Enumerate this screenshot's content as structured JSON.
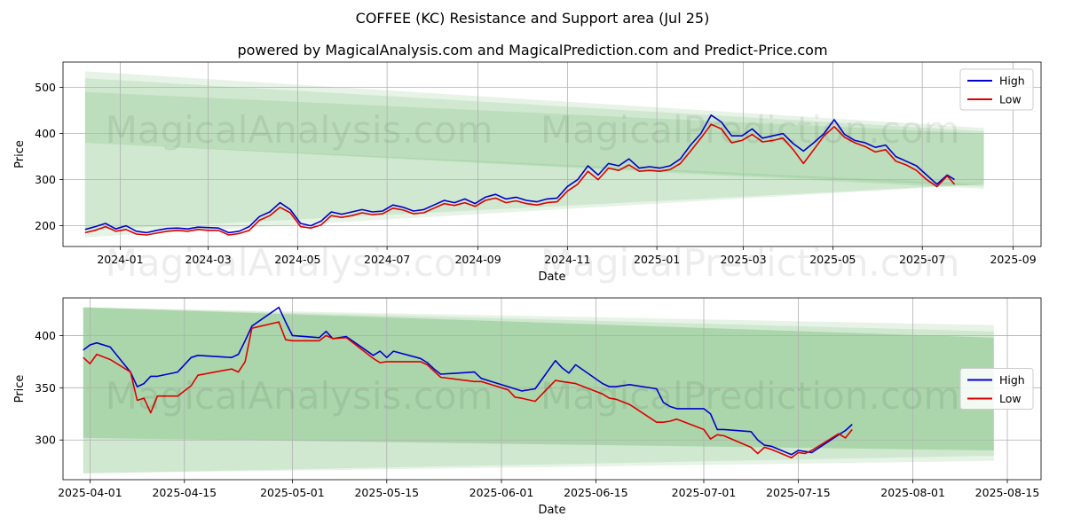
{
  "title": "COFFEE (KC) Resistance and Support area (Jul 25)",
  "subtitle": "powered by MagicalAnalysis.com and MagicalPrediction.com and Predict-Price.com",
  "watermark": "MagicalAnalysis.com    MagicalPrediction.com",
  "colors": {
    "high": "#0000cc",
    "low": "#dd0000",
    "band": "#2e9a2e",
    "grid": "#b0b0b0"
  },
  "chart_data": [
    {
      "type": "line",
      "xlabel": "Date",
      "ylabel": "Price",
      "ylim": [
        155,
        555
      ],
      "xlim": [
        "2023-11-23",
        "2025-09-20"
      ],
      "xticks": [
        "2024-01",
        "2024-03",
        "2024-05",
        "2024-07",
        "2024-09",
        "2024-11",
        "2025-01",
        "2025-03",
        "2025-05",
        "2025-07",
        "2025-09"
      ],
      "yticks": [
        200,
        300,
        400,
        500
      ],
      "legend": {
        "position": "top-right",
        "entries": [
          "High",
          "Low"
        ]
      },
      "bands": [
        {
          "start": "2023-12-08",
          "end": "2025-08-12",
          "upper": [
            535,
            412
          ],
          "lower": [
            380,
            280
          ],
          "opacity": 0.12
        },
        {
          "start": "2023-12-08",
          "end": "2025-08-12",
          "upper": [
            520,
            405
          ],
          "lower": [
            380,
            285
          ],
          "opacity": 0.12
        },
        {
          "start": "2023-12-08",
          "end": "2025-08-12",
          "upper": [
            490,
            400
          ],
          "lower": [
            380,
            290
          ],
          "opacity": 0.12
        },
        {
          "start": "2023-12-08",
          "end": "2025-08-12",
          "upper": [
            380,
            290
          ],
          "lower": [
            190,
            290
          ],
          "opacity": 0.12
        },
        {
          "start": "2023-12-08",
          "end": "2025-08-12",
          "upper": [
            380,
            290
          ],
          "lower": [
            175,
            290
          ],
          "opacity": 0.12
        }
      ],
      "series": [
        {
          "name": "High",
          "x": [
            "2023-12-08",
            "2023-12-15",
            "2023-12-22",
            "2023-12-29",
            "2024-01-05",
            "2024-01-12",
            "2024-01-19",
            "2024-01-26",
            "2024-02-02",
            "2024-02-09",
            "2024-02-16",
            "2024-02-23",
            "2024-03-01",
            "2024-03-08",
            "2024-03-15",
            "2024-03-22",
            "2024-03-29",
            "2024-04-05",
            "2024-04-12",
            "2024-04-19",
            "2024-04-26",
            "2024-05-03",
            "2024-05-10",
            "2024-05-17",
            "2024-05-24",
            "2024-05-31",
            "2024-06-07",
            "2024-06-14",
            "2024-06-21",
            "2024-06-28",
            "2024-07-05",
            "2024-07-12",
            "2024-07-19",
            "2024-07-26",
            "2024-08-02",
            "2024-08-09",
            "2024-08-16",
            "2024-08-23",
            "2024-08-30",
            "2024-09-06",
            "2024-09-13",
            "2024-09-20",
            "2024-09-27",
            "2024-10-04",
            "2024-10-11",
            "2024-10-18",
            "2024-10-25",
            "2024-11-01",
            "2024-11-08",
            "2024-11-15",
            "2024-11-22",
            "2024-11-29",
            "2024-12-06",
            "2024-12-13",
            "2024-12-20",
            "2024-12-27",
            "2025-01-03",
            "2025-01-10",
            "2025-01-17",
            "2025-01-24",
            "2025-01-31",
            "2025-02-07",
            "2025-02-14",
            "2025-02-21",
            "2025-02-28",
            "2025-03-07",
            "2025-03-14",
            "2025-03-21",
            "2025-03-28",
            "2025-04-04",
            "2025-04-11",
            "2025-04-18",
            "2025-04-25",
            "2025-05-02",
            "2025-05-09",
            "2025-05-16",
            "2025-05-23",
            "2025-05-30",
            "2025-06-06",
            "2025-06-13",
            "2025-06-20",
            "2025-06-27",
            "2025-07-04",
            "2025-07-11",
            "2025-07-18",
            "2025-07-23"
          ],
          "values": [
            192,
            198,
            205,
            193,
            200,
            188,
            185,
            190,
            194,
            195,
            193,
            197,
            196,
            195,
            185,
            188,
            198,
            220,
            230,
            250,
            235,
            205,
            200,
            210,
            230,
            225,
            230,
            235,
            230,
            232,
            245,
            240,
            232,
            235,
            245,
            255,
            250,
            258,
            248,
            262,
            268,
            258,
            262,
            255,
            252,
            258,
            260,
            285,
            300,
            330,
            310,
            335,
            330,
            345,
            325,
            328,
            325,
            330,
            345,
            375,
            400,
            440,
            425,
            395,
            395,
            410,
            390,
            395,
            400,
            378,
            362,
            380,
            400,
            430,
            398,
            385,
            380,
            370,
            375,
            350,
            340,
            330,
            310,
            290,
            310,
            300
          ]
        },
        {
          "name": "Low",
          "x": [
            "2023-12-08",
            "2023-12-15",
            "2023-12-22",
            "2023-12-29",
            "2024-01-05",
            "2024-01-12",
            "2024-01-19",
            "2024-01-26",
            "2024-02-02",
            "2024-02-09",
            "2024-02-16",
            "2024-02-23",
            "2024-03-01",
            "2024-03-08",
            "2024-03-15",
            "2024-03-22",
            "2024-03-29",
            "2024-04-05",
            "2024-04-12",
            "2024-04-19",
            "2024-04-26",
            "2024-05-03",
            "2024-05-10",
            "2024-05-17",
            "2024-05-24",
            "2024-05-31",
            "2024-06-07",
            "2024-06-14",
            "2024-06-21",
            "2024-06-28",
            "2024-07-05",
            "2024-07-12",
            "2024-07-19",
            "2024-07-26",
            "2024-08-02",
            "2024-08-09",
            "2024-08-16",
            "2024-08-23",
            "2024-08-30",
            "2024-09-06",
            "2024-09-13",
            "2024-09-20",
            "2024-09-27",
            "2024-10-04",
            "2024-10-11",
            "2024-10-18",
            "2024-10-25",
            "2024-11-01",
            "2024-11-08",
            "2024-11-15",
            "2024-11-22",
            "2024-11-29",
            "2024-12-06",
            "2024-12-13",
            "2024-12-20",
            "2024-12-27",
            "2025-01-03",
            "2025-01-10",
            "2025-01-17",
            "2025-01-24",
            "2025-01-31",
            "2025-02-07",
            "2025-02-14",
            "2025-02-21",
            "2025-02-28",
            "2025-03-07",
            "2025-03-14",
            "2025-03-21",
            "2025-03-28",
            "2025-04-04",
            "2025-04-11",
            "2025-04-18",
            "2025-04-25",
            "2025-05-02",
            "2025-05-09",
            "2025-05-16",
            "2025-05-23",
            "2025-05-30",
            "2025-06-06",
            "2025-06-13",
            "2025-06-20",
            "2025-06-27",
            "2025-07-04",
            "2025-07-11",
            "2025-07-18",
            "2025-07-23"
          ],
          "values": [
            185,
            190,
            198,
            188,
            192,
            182,
            180,
            184,
            188,
            190,
            188,
            192,
            190,
            190,
            180,
            183,
            190,
            212,
            222,
            240,
            228,
            198,
            195,
            202,
            222,
            218,
            222,
            228,
            224,
            226,
            238,
            234,
            226,
            228,
            238,
            248,
            244,
            250,
            242,
            255,
            260,
            250,
            254,
            248,
            245,
            250,
            252,
            275,
            290,
            318,
            300,
            325,
            320,
            332,
            318,
            320,
            318,
            322,
            335,
            362,
            390,
            420,
            410,
            380,
            385,
            398,
            382,
            385,
            390,
            365,
            335,
            365,
            395,
            415,
            392,
            380,
            372,
            360,
            365,
            340,
            332,
            320,
            300,
            285,
            308,
            290
          ]
        }
      ]
    },
    {
      "type": "line",
      "xlabel": "Date",
      "ylabel": "Price",
      "ylim": [
        262,
        436
      ],
      "xlim": [
        "2025-03-28",
        "2025-08-20"
      ],
      "xticks": [
        "2025-04-01",
        "2025-04-15",
        "2025-05-01",
        "2025-05-15",
        "2025-06-01",
        "2025-06-15",
        "2025-07-01",
        "2025-07-15",
        "2025-08-01",
        "2025-08-15"
      ],
      "yticks": [
        300,
        350,
        400
      ],
      "legend": {
        "position": "center-right",
        "entries": [
          "High",
          "Low"
        ]
      },
      "bands": [
        {
          "start": "2025-03-31",
          "end": "2025-08-13",
          "upper": [
            427,
            410
          ],
          "lower": [
            268,
            280
          ],
          "opacity": 0.12
        },
        {
          "start": "2025-03-31",
          "end": "2025-08-13",
          "upper": [
            427,
            404
          ],
          "lower": [
            268,
            285
          ],
          "opacity": 0.12
        },
        {
          "start": "2025-03-31",
          "end": "2025-08-13",
          "upper": [
            427,
            398
          ],
          "lower": [
            302,
            290
          ],
          "opacity": 0.12
        },
        {
          "start": "2025-03-31",
          "end": "2025-08-13",
          "upper": [
            427,
            398
          ],
          "lower": [
            302,
            290
          ],
          "opacity": 0.12
        }
      ],
      "series": [
        {
          "name": "High",
          "x": [
            "2025-03-31",
            "2025-04-01",
            "2025-04-02",
            "2025-04-04",
            "2025-04-07",
            "2025-04-08",
            "2025-04-09",
            "2025-04-10",
            "2025-04-11",
            "2025-04-14",
            "2025-04-16",
            "2025-04-17",
            "2025-04-22",
            "2025-04-23",
            "2025-04-24",
            "2025-04-25",
            "2025-04-29",
            "2025-04-30",
            "2025-05-01",
            "2025-05-05",
            "2025-05-06",
            "2025-05-07",
            "2025-05-09",
            "2025-05-13",
            "2025-05-14",
            "2025-05-15",
            "2025-05-16",
            "2025-05-20",
            "2025-05-21",
            "2025-05-22",
            "2025-05-23",
            "2025-05-28",
            "2025-05-29",
            "2025-05-30",
            "2025-06-02",
            "2025-06-03",
            "2025-06-04",
            "2025-06-06",
            "2025-06-09",
            "2025-06-10",
            "2025-06-11",
            "2025-06-12",
            "2025-06-16",
            "2025-06-17",
            "2025-06-18",
            "2025-06-20",
            "2025-06-24",
            "2025-06-25",
            "2025-06-26",
            "2025-06-27",
            "2025-07-01",
            "2025-07-02",
            "2025-07-03",
            "2025-07-04",
            "2025-07-08",
            "2025-07-09",
            "2025-07-10",
            "2025-07-11",
            "2025-07-14",
            "2025-07-15",
            "2025-07-16",
            "2025-07-17",
            "2025-07-21",
            "2025-07-22",
            "2025-07-23"
          ],
          "values": [
            386,
            391,
            393,
            389,
            365,
            351,
            354,
            361,
            361,
            365,
            379,
            381,
            379,
            382,
            395,
            409,
            427,
            413,
            400,
            398,
            404,
            397,
            399,
            381,
            385,
            379,
            385,
            378,
            374,
            368,
            363,
            365,
            359,
            357,
            351,
            349,
            347,
            349,
            376,
            369,
            364,
            372,
            354,
            351,
            351,
            353,
            349,
            336,
            332,
            330,
            330,
            325,
            310,
            310,
            308,
            300,
            295,
            294,
            286,
            290,
            289,
            288,
            305,
            309,
            315
          ]
        },
        {
          "name": "Low",
          "x": [
            "2025-03-31",
            "2025-04-01",
            "2025-04-02",
            "2025-04-04",
            "2025-04-07",
            "2025-04-08",
            "2025-04-09",
            "2025-04-10",
            "2025-04-11",
            "2025-04-14",
            "2025-04-16",
            "2025-04-17",
            "2025-04-22",
            "2025-04-23",
            "2025-04-24",
            "2025-04-25",
            "2025-04-29",
            "2025-04-30",
            "2025-05-01",
            "2025-05-05",
            "2025-05-06",
            "2025-05-07",
            "2025-05-09",
            "2025-05-13",
            "2025-05-14",
            "2025-05-15",
            "2025-05-16",
            "2025-05-20",
            "2025-05-21",
            "2025-05-22",
            "2025-05-23",
            "2025-05-28",
            "2025-05-29",
            "2025-05-30",
            "2025-06-02",
            "2025-06-03",
            "2025-06-04",
            "2025-06-06",
            "2025-06-09",
            "2025-06-10",
            "2025-06-11",
            "2025-06-12",
            "2025-06-16",
            "2025-06-17",
            "2025-06-18",
            "2025-06-20",
            "2025-06-24",
            "2025-06-25",
            "2025-06-26",
            "2025-06-27",
            "2025-07-01",
            "2025-07-02",
            "2025-07-03",
            "2025-07-04",
            "2025-07-08",
            "2025-07-09",
            "2025-07-10",
            "2025-07-11",
            "2025-07-14",
            "2025-07-15",
            "2025-07-16",
            "2025-07-17",
            "2025-07-21",
            "2025-07-22",
            "2025-07-23"
          ],
          "values": [
            379,
            373,
            382,
            377,
            365,
            338,
            340,
            326,
            342,
            342,
            352,
            362,
            368,
            365,
            375,
            407,
            413,
            396,
            395,
            395,
            400,
            397,
            398,
            378,
            374,
            375,
            375,
            375,
            372,
            366,
            360,
            356,
            356,
            354,
            348,
            341,
            340,
            337,
            357,
            356,
            355,
            354,
            344,
            340,
            339,
            334,
            317,
            317,
            318,
            320,
            310,
            301,
            305,
            304,
            293,
            287,
            293,
            291,
            283,
            288,
            287,
            290,
            306,
            302,
            310
          ]
        }
      ]
    }
  ]
}
